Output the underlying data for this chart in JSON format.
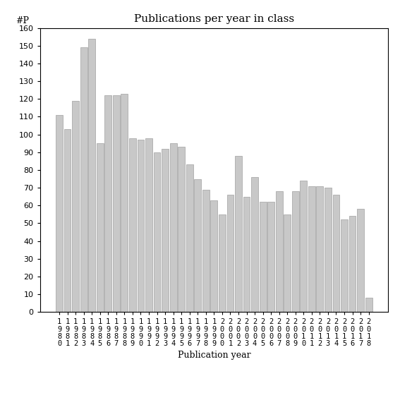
{
  "title": "Publications per year in class",
  "xlabel": "Publication year",
  "ylabel": "#P",
  "bar_color": "#c8c8c8",
  "bar_edgecolor": "#a0a0a0",
  "ylim": [
    0,
    160
  ],
  "yticks": [
    0,
    10,
    20,
    30,
    40,
    50,
    60,
    70,
    80,
    90,
    100,
    110,
    120,
    130,
    140,
    150,
    160
  ],
  "years": [
    "1980",
    "1981",
    "1982",
    "1983",
    "1984",
    "1985",
    "1986",
    "1987",
    "1988",
    "1989",
    "1990",
    "1991",
    "1992",
    "1993",
    "1994",
    "1995",
    "1996",
    "1997",
    "1998",
    "1999",
    "2000",
    "2001",
    "2002",
    "2003",
    "2004",
    "2005",
    "2006",
    "2007",
    "2008",
    "2009",
    "2010",
    "2011",
    "2012",
    "2013",
    "2014",
    "2015",
    "2016",
    "2017",
    "2018"
  ],
  "values": [
    111,
    103,
    119,
    149,
    154,
    95,
    122,
    122,
    123,
    98,
    97,
    98,
    90,
    92,
    95,
    93,
    83,
    75,
    69,
    63,
    55,
    66,
    88,
    65,
    76,
    62,
    62,
    68,
    55,
    68,
    74,
    71,
    71,
    70,
    66,
    52,
    54,
    58,
    8
  ],
  "title_fontsize": 11,
  "label_fontsize": 9,
  "tick_fontsize": 7.5
}
